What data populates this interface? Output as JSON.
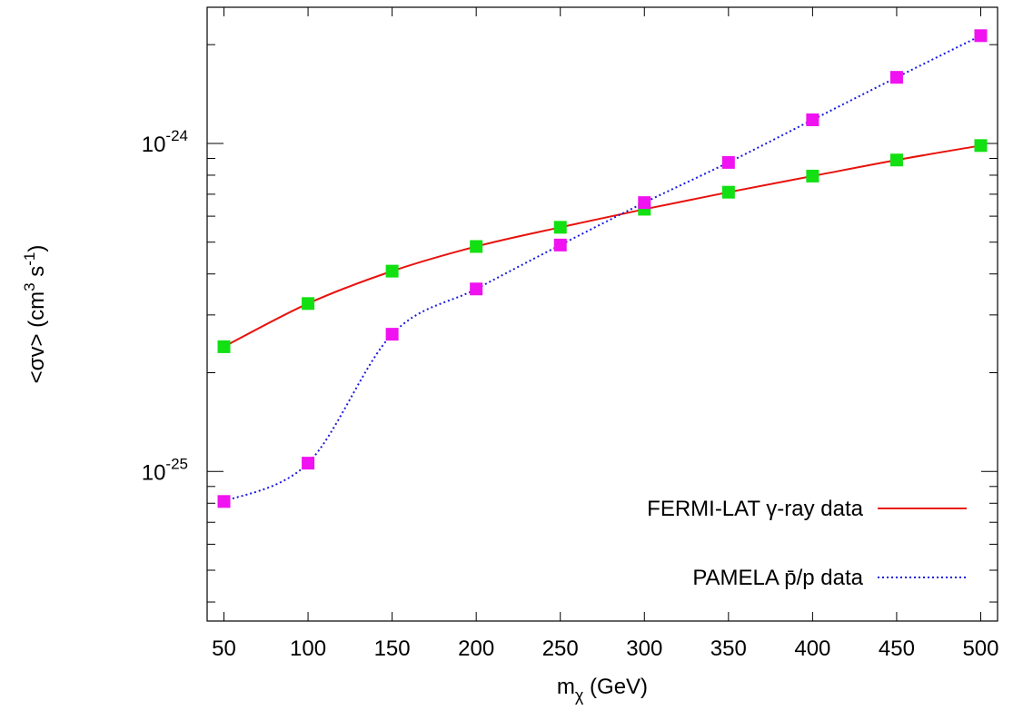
{
  "chart_data": {
    "type": "line",
    "title": "",
    "xlabel": {
      "base": "m",
      "sub": "χ",
      "rest": " (GeV)"
    },
    "ylabel": "<σv>  (cm3 s-1)",
    "ylabel_parts": {
      "main": "<σv>  (cm",
      "sup1": "3",
      "mid": " s",
      "sup2": "-1",
      "end": ")"
    },
    "xlim": [
      40,
      510
    ],
    "ylim": [
      3.5e-26,
      2.6e-24
    ],
    "yscale": "log",
    "x_ticks": [
      50,
      100,
      150,
      200,
      250,
      300,
      350,
      400,
      450,
      500
    ],
    "x_tick_labels": [
      "50",
      "100",
      "150",
      "200",
      "250",
      "300",
      "350",
      "400",
      "450",
      "500"
    ],
    "y_major_ticks": [
      {
        "value": 1e-25,
        "base": "10",
        "exp": "-25"
      },
      {
        "value": 1e-24,
        "base": "10",
        "exp": "-24"
      }
    ],
    "grid": false,
    "legend_placement": "bottom-right",
    "series": [
      {
        "name": "FERMI-LAT γ-ray data",
        "line_color": "#e8120c",
        "marker_color": "#12e012",
        "dash": "solid",
        "x": [
          50,
          100,
          150,
          200,
          250,
          300,
          350,
          400,
          450,
          500
        ],
        "values": [
          2.4e-25,
          3.25e-25,
          4.08e-25,
          4.85e-25,
          5.55e-25,
          6.3e-25,
          7.1e-25,
          7.95e-25,
          8.9e-25,
          9.85e-25
        ]
      },
      {
        "name": "PAMELA p̄/p data",
        "line_color": "#1a1ae0",
        "marker_color": "#f012f0",
        "dash": "dotted",
        "x": [
          50,
          100,
          150,
          200,
          250,
          300,
          350,
          400,
          450,
          500
        ],
        "values": [
          8.1e-26,
          1.06e-25,
          2.62e-25,
          3.6e-25,
          4.9e-25,
          6.6e-25,
          8.75e-25,
          1.18e-24,
          1.59e-24,
          2.13e-24
        ]
      }
    ]
  }
}
